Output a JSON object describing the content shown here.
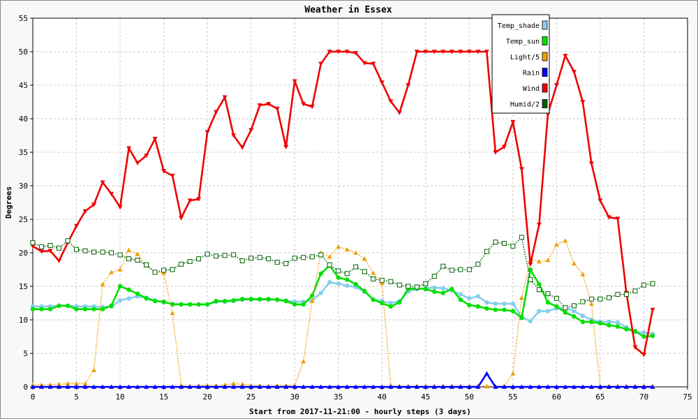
{
  "chart_data": {
    "type": "line",
    "title": "Weather in Essex",
    "xlabel": "Start from 2017-11-21:00 - hourly steps (3 days)",
    "ylabel": "Degrees",
    "xlim": [
      0,
      75
    ],
    "ylim": [
      0,
      55
    ],
    "x_ticks": [
      0,
      5,
      10,
      15,
      20,
      25,
      30,
      35,
      40,
      45,
      50,
      55,
      60,
      65,
      70,
      75
    ],
    "y_ticks": [
      0,
      5,
      10,
      15,
      20,
      25,
      30,
      35,
      40,
      45,
      50,
      55
    ],
    "grid": true,
    "legend_position": "top-right",
    "x": [
      0,
      1,
      2,
      3,
      4,
      5,
      6,
      7,
      8,
      9,
      10,
      11,
      12,
      13,
      14,
      15,
      16,
      17,
      18,
      19,
      20,
      21,
      22,
      23,
      24,
      25,
      26,
      27,
      28,
      29,
      30,
      31,
      32,
      33,
      34,
      35,
      36,
      37,
      38,
      39,
      40,
      41,
      42,
      43,
      44,
      45,
      46,
      47,
      48,
      49,
      50,
      51,
      52,
      53,
      54,
      55,
      56,
      57,
      58,
      59,
      60,
      61,
      62,
      63,
      64,
      65,
      66,
      67,
      68,
      69,
      70,
      71
    ],
    "series": [
      {
        "name": "Temp_shade",
        "color": "#87ceeb",
        "style": "solid",
        "marker": "circle",
        "values": [
          12,
          12,
          12,
          12.1,
          12.1,
          12,
          12,
          12,
          11.9,
          12,
          12.9,
          13.2,
          13.5,
          13.3,
          12.9,
          12.6,
          12.4,
          12.3,
          12.3,
          12.3,
          12.3,
          12.7,
          12.7,
          12.8,
          13,
          13,
          13,
          13,
          13,
          12.9,
          12.7,
          12.7,
          12.9,
          14,
          15.6,
          15.4,
          15.1,
          14.9,
          14.2,
          13,
          12.8,
          12.5,
          12.8,
          14.2,
          14.6,
          14.7,
          14.8,
          14.7,
          14.4,
          13.8,
          13.2,
          13.5,
          12.6,
          12.4,
          12.4,
          12.4,
          10.4,
          9.8,
          11.3,
          11.3,
          11.7,
          11.8,
          11.3,
          10.6,
          10,
          9.7,
          9.7,
          9.6,
          8.9,
          8.2,
          8.1,
          7.9
        ]
      },
      {
        "name": "Temp_sun",
        "color": "#00e000",
        "style": "solid",
        "marker": "circle",
        "values": [
          11.6,
          11.6,
          11.6,
          12.1,
          12.1,
          11.6,
          11.6,
          11.6,
          11.6,
          12.1,
          15,
          14.5,
          13.9,
          13.2,
          12.8,
          12.7,
          12.3,
          12.3,
          12.3,
          12.3,
          12.3,
          12.8,
          12.8,
          12.9,
          13.1,
          13.1,
          13.1,
          13.1,
          13,
          12.8,
          12.3,
          12.3,
          13.6,
          16.9,
          18.1,
          16.3,
          16,
          15.3,
          14.3,
          13,
          12.5,
          12,
          12.6,
          14.6,
          14.7,
          14.6,
          14.2,
          14,
          14.6,
          13,
          12.2,
          12,
          11.7,
          11.5,
          11.5,
          11.3,
          10.3,
          17.5,
          15.3,
          12.6,
          12,
          11.1,
          10.5,
          9.7,
          9.7,
          9.5,
          9.2,
          9,
          8.6,
          8.3,
          7.5,
          7.6
        ]
      },
      {
        "name": "Light/5",
        "color": "#f0a000",
        "style": "dotted",
        "marker": "triangle-up",
        "values": [
          0.3,
          0.3,
          0.3,
          0.4,
          0.5,
          0.5,
          0.5,
          2.5,
          15.3,
          17.1,
          17.5,
          20.4,
          19.8,
          18.1,
          17.1,
          17,
          11,
          0.2,
          0.1,
          0.2,
          0.2,
          0.2,
          0.3,
          0.5,
          0.4,
          0.2,
          0.2,
          0.1,
          0.2,
          0.2,
          0.2,
          3.8,
          12.8,
          20,
          19.4,
          20.9,
          20.5,
          20,
          19.1,
          17,
          15.5,
          0.2,
          0.1,
          0.1,
          0.1,
          0.1,
          0.1,
          0.1,
          0.1,
          0.1,
          0.1,
          0.1,
          0.1,
          0.1,
          0.1,
          2,
          13.3,
          19,
          18.7,
          18.9,
          21.2,
          21.8,
          18.4,
          16.8,
          12.4,
          0.1,
          0.1,
          0.1,
          0.1,
          0.1,
          0.1,
          0.1
        ]
      },
      {
        "name": "Rain",
        "color": "#0000ff",
        "style": "solid",
        "marker": "triangle-up",
        "values": [
          0,
          0,
          0,
          0,
          0,
          0,
          0,
          0,
          0,
          0,
          0,
          0,
          0,
          0,
          0,
          0,
          0,
          0,
          0,
          0,
          0,
          0,
          0,
          0,
          0,
          0,
          0,
          0,
          0,
          0,
          0,
          0,
          0,
          0,
          0,
          0,
          0,
          0,
          0,
          0,
          0,
          0,
          0,
          0,
          0,
          0,
          0,
          0,
          0,
          0,
          0,
          0,
          2,
          0,
          0,
          0,
          0,
          0,
          0,
          0,
          0,
          0,
          0,
          0,
          0,
          0,
          0,
          0,
          0,
          0,
          0,
          0
        ]
      },
      {
        "name": "Wind",
        "color": "#ee0000",
        "style": "solid",
        "marker": "triangle-down",
        "values": [
          21,
          20.2,
          20.3,
          18.8,
          21.5,
          24,
          26.2,
          27.2,
          30.5,
          28.8,
          26.8,
          35.6,
          33.4,
          34.5,
          37,
          32.2,
          31.5,
          25.2,
          27.8,
          28,
          38,
          41,
          43.2,
          37.5,
          35.7,
          38.3,
          42,
          42.2,
          41.5,
          35.8,
          45.6,
          42.2,
          41.8,
          48.2,
          50,
          50,
          50,
          49.8,
          48.3,
          48.2,
          45.4,
          42.6,
          40.9,
          45,
          50,
          50,
          50,
          50,
          50,
          50,
          50,
          50,
          50,
          35,
          35.8,
          39.5,
          32.5,
          18.3,
          24.2,
          40.7,
          45,
          49.4,
          47,
          42.5,
          33.3,
          27.8,
          25.3,
          25.1,
          14,
          5.9,
          4.8,
          11.5
        ]
      },
      {
        "name": "Humid/2",
        "color": "#006000",
        "style": "dotted",
        "marker": "square-open",
        "values": [
          21.5,
          20.9,
          21.1,
          20.7,
          21.8,
          20.5,
          20.3,
          20.1,
          20.1,
          20,
          19.7,
          19.1,
          18.9,
          18.2,
          17.1,
          17.4,
          17.5,
          18.3,
          18.7,
          19.1,
          19.8,
          19.5,
          19.6,
          19.7,
          18.8,
          19.2,
          19.3,
          19.1,
          18.6,
          18.4,
          19.2,
          19.3,
          19.4,
          19.7,
          18.2,
          17.3,
          16.9,
          17.9,
          17.2,
          16.1,
          15.9,
          15.7,
          15.2,
          15,
          14.9,
          15.4,
          16.5,
          18,
          17.4,
          17.5,
          17.5,
          18.3,
          20.2,
          21.6,
          21.4,
          21,
          22.3,
          16,
          14.5,
          13.9,
          13.2,
          11.8,
          12.1,
          12.7,
          13.1,
          13.1,
          13.3,
          13.8,
          13.8,
          14.3,
          15.2,
          15.4
        ]
      }
    ]
  }
}
